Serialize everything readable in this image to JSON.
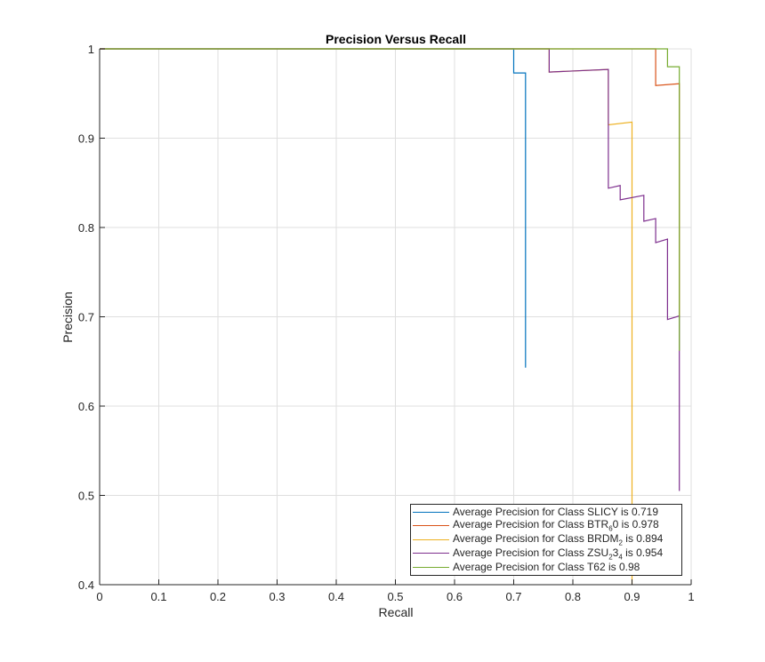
{
  "chart_data": {
    "type": "line",
    "title": "Precision Versus Recall",
    "xlabel": "Recall",
    "ylabel": "Precision",
    "xlim": [
      0,
      1
    ],
    "ylim": [
      0.4,
      1
    ],
    "xticks": [
      "0",
      "0.1",
      "0.2",
      "0.3",
      "0.4",
      "0.5",
      "0.6",
      "0.7",
      "0.8",
      "0.9",
      "1"
    ],
    "yticks": [
      "0.4",
      "0.5",
      "0.6",
      "0.7",
      "0.8",
      "0.9",
      "1"
    ],
    "grid": true,
    "legend_position": "bottom-right",
    "series": [
      {
        "name": "SLICY",
        "color": "#0072BD",
        "ap": "0.719",
        "x": [
          0,
          0.7,
          0.7,
          0.72,
          0.72
        ],
        "y": [
          1,
          1,
          0.973,
          0.973,
          0.643
        ]
      },
      {
        "name": "BTR60",
        "color": "#D95319",
        "ap": "0.978",
        "x": [
          0,
          0.94,
          0.94,
          0.98,
          0.98
        ],
        "y": [
          1,
          1,
          0.959,
          0.961,
          0.7
        ]
      },
      {
        "name": "BRDM2",
        "color": "#EDB120",
        "ap": "0.894",
        "x": [
          0,
          0.76,
          0.76,
          0.86,
          0.86,
          0.9,
          0.9
        ],
        "y": [
          1,
          1,
          0.974,
          0.977,
          0.915,
          0.918,
          0.4
        ]
      },
      {
        "name": "ZSU234",
        "color": "#7E2F8E",
        "ap": "0.954",
        "x": [
          0,
          0.76,
          0.76,
          0.86,
          0.86,
          0.88,
          0.88,
          0.92,
          0.92,
          0.94,
          0.94,
          0.96,
          0.96,
          0.98,
          0.98
        ],
        "y": [
          1,
          1,
          0.974,
          0.977,
          0.844,
          0.847,
          0.831,
          0.836,
          0.807,
          0.81,
          0.783,
          0.787,
          0.697,
          0.701,
          0.505
        ]
      },
      {
        "name": "T62",
        "color": "#77AC30",
        "ap": "0.98",
        "x": [
          0,
          0.96,
          0.96,
          0.98,
          0.98
        ],
        "y": [
          1,
          1,
          0.98,
          0.98,
          0.662
        ]
      }
    ],
    "legend": [
      {
        "pre": "Average Precision for Class SLICY is 0.719",
        "sub": "",
        "mid": "",
        "sub2": "",
        "post": ""
      },
      {
        "pre": "Average  Precision  for  Class  BTR",
        "sub": "6",
        "mid": "0  is  0.978",
        "sub2": "",
        "post": ""
      },
      {
        "pre": "Average  Precision  for  Class  BRDM",
        "sub": "2",
        "mid": "  is  0.894",
        "sub2": "",
        "post": ""
      },
      {
        "pre": "Average  Precision  for  Class  ZSU",
        "sub": "2",
        "mid": "3",
        "sub2": "4",
        "post": "  is  0.954"
      },
      {
        "pre": "Average Precision for Class T62 is 0.98",
        "sub": "",
        "mid": "",
        "sub2": "",
        "post": ""
      }
    ]
  }
}
